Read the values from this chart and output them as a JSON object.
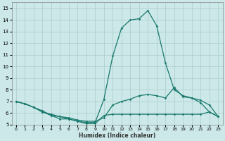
{
  "xlabel": "Humidex (Indice chaleur)",
  "x_ticks": [
    0,
    1,
    2,
    3,
    4,
    5,
    6,
    7,
    8,
    9,
    10,
    11,
    12,
    13,
    14,
    15,
    16,
    17,
    18,
    19,
    20,
    21,
    22,
    23
  ],
  "ylim": [
    5.0,
    15.5
  ],
  "xlim": [
    -0.5,
    23.5
  ],
  "yticks": [
    5,
    6,
    7,
    8,
    9,
    10,
    11,
    12,
    13,
    14,
    15
  ],
  "bg_color": "#cce8e8",
  "grid_color": "#aacccc",
  "line_color": "#1a7a6e",
  "line_peak_x": [
    0,
    1,
    2,
    3,
    4,
    5,
    6,
    7,
    8,
    9,
    10,
    11,
    12,
    13,
    14,
    15,
    16,
    17,
    18,
    19,
    20,
    21,
    22,
    23
  ],
  "line_peak_y": [
    7.0,
    6.8,
    6.5,
    6.1,
    5.9,
    5.7,
    5.5,
    5.3,
    5.2,
    5.2,
    7.2,
    10.9,
    13.3,
    14.0,
    14.1,
    14.8,
    13.5,
    10.3,
    8.0,
    7.5,
    7.3,
    6.9,
    6.1,
    5.7
  ],
  "line_flat_x": [
    0,
    1,
    2,
    3,
    4,
    5,
    6,
    7,
    8,
    9,
    10,
    11,
    12,
    13,
    14,
    15,
    16,
    17,
    18,
    19,
    20,
    21,
    22,
    23
  ],
  "line_flat_y": [
    7.0,
    6.8,
    6.5,
    6.2,
    5.8,
    5.7,
    5.6,
    5.4,
    5.3,
    5.3,
    5.6,
    6.7,
    7.0,
    7.2,
    7.5,
    7.6,
    7.5,
    7.3,
    8.2,
    7.4,
    7.3,
    7.1,
    6.7,
    5.7
  ],
  "line_low_x": [
    0,
    1,
    2,
    3,
    4,
    5,
    6,
    7,
    8,
    9,
    10,
    11,
    12,
    13,
    14,
    15,
    16,
    17,
    18,
    19,
    20,
    21,
    22,
    23
  ],
  "line_low_y": [
    7.0,
    6.8,
    6.5,
    6.1,
    5.8,
    5.5,
    5.5,
    5.3,
    5.1,
    5.1,
    5.8,
    5.9,
    5.9,
    5.9,
    5.9,
    5.9,
    5.9,
    5.9,
    5.9,
    5.9,
    5.9,
    5.9,
    6.1,
    5.7
  ]
}
